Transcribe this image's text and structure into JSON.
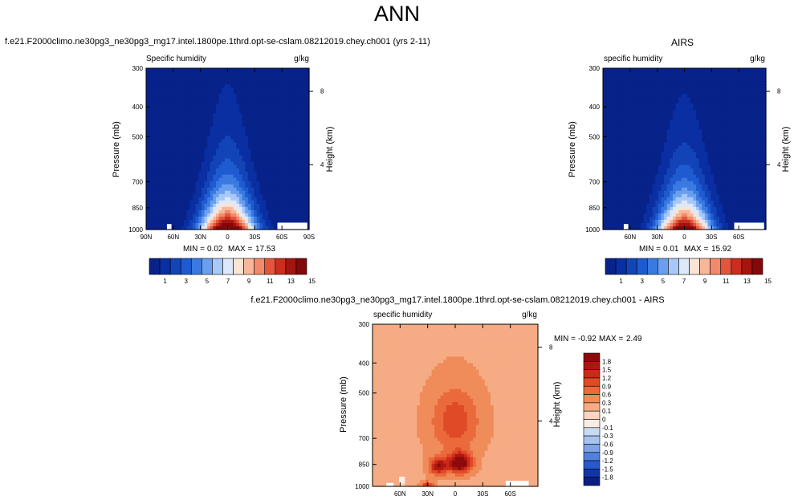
{
  "figure": {
    "title": "ANN"
  },
  "chart_data": [
    {
      "type": "heatmap",
      "panel": "model",
      "header": "f.e21.F2000climo.ne30pg3_ne30pg3_mg17.intel.1800pe.1thrd.opt-se-cslam.08212019.chey.ch001 (yrs 2-11)",
      "left_label": "Specific humidity",
      "right_label": "g/kg",
      "ylabel": "Pressure (mb)",
      "y2label": "Height (km)",
      "yticks": [
        "300",
        "400",
        "500",
        "700",
        "850",
        "1000"
      ],
      "y2ticks": [
        "8",
        "4"
      ],
      "xticks": [
        "90N",
        "60N",
        "30N",
        "0",
        "30S",
        "60S",
        "90S"
      ],
      "min_label": "MIN =",
      "min_value": "0.02",
      "max_label": "MAX =",
      "max_value": "17.53",
      "field": {
        "peak": 17.53,
        "floor": 0.02,
        "peak_lat": 0,
        "peak_pressure": 1000
      },
      "colorbar": {
        "labels": [
          "1",
          "3",
          "5",
          "7",
          "9",
          "11",
          "13",
          "15"
        ],
        "colors": [
          "#07238a",
          "#0a2fa3",
          "#1244b8",
          "#1f5bd0",
          "#3a7ae0",
          "#6a9ff0",
          "#a8c8f8",
          "#dde9fb",
          "#fde3d4",
          "#f9b79a",
          "#f3896b",
          "#e4563c",
          "#c92e1f",
          "#a5150f",
          "#82080a"
        ]
      }
    },
    {
      "type": "heatmap",
      "panel": "obs",
      "header": "AIRS",
      "left_label": "specific humidity",
      "right_label": "g/kg",
      "ylabel": "Pressure (mb)",
      "y2label": "Height (km)",
      "yticks": [
        "300",
        "400",
        "500",
        "700",
        "850",
        "1000"
      ],
      "y2ticks": [
        "8",
        "4"
      ],
      "xticks": [
        "60N",
        "30N",
        "0",
        "30S",
        "60S"
      ],
      "min_label": "MIN =",
      "min_value": "0.01",
      "max_label": "MAX =",
      "max_value": "15.92",
      "field": {
        "peak": 15.92,
        "floor": 0.01,
        "peak_lat": 0,
        "peak_pressure": 1000
      },
      "colorbar": {
        "labels": [
          "1",
          "3",
          "5",
          "7",
          "9",
          "11",
          "13",
          "15"
        ],
        "colors": [
          "#07238a",
          "#0a2fa3",
          "#1244b8",
          "#1f5bd0",
          "#3a7ae0",
          "#6a9ff0",
          "#a8c8f8",
          "#dde9fb",
          "#fde3d4",
          "#f9b79a",
          "#f3896b",
          "#e4563c",
          "#c92e1f",
          "#a5150f",
          "#82080a"
        ]
      }
    },
    {
      "type": "heatmap",
      "panel": "diff",
      "header": "f.e21.F2000climo.ne30pg3_ne30pg3_mg17.intel.1800pe.1thrd.opt-se-cslam.08212019.chey.ch001 - AIRS",
      "left_label": "specific humidity",
      "right_label": "g/kg",
      "ylabel": "Pressure (mb)",
      "y2label": "Height (km)",
      "yticks": [
        "300",
        "400",
        "500",
        "700",
        "850",
        "1000"
      ],
      "y2ticks": [
        "8",
        "4"
      ],
      "xticks": [
        "60N",
        "30N",
        "0",
        "30S",
        "60S"
      ],
      "min_label": "MIN =",
      "min_value": "-0.92",
      "max_label": "MAX =",
      "max_value": "2.49",
      "colorbar": {
        "labels": [
          "1.8",
          "1.5",
          "1.2",
          "0.9",
          "0.6",
          "0.3",
          "0.1",
          "0",
          "-0.1",
          "-0.3",
          "-0.6",
          "-0.9",
          "-1.2",
          "-1.5",
          "-1.8"
        ],
        "colors": [
          "#8c0a0a",
          "#b01610",
          "#cc2a18",
          "#e04a26",
          "#ea6a3c",
          "#f08c5a",
          "#f5ac84",
          "#fbd5bf",
          "#f9ece3",
          "#c9daf3",
          "#a7c3ef",
          "#7ea4e6",
          "#5281db",
          "#2a59cf",
          "#1234ad",
          "#0b1f83"
        ]
      }
    }
  ]
}
